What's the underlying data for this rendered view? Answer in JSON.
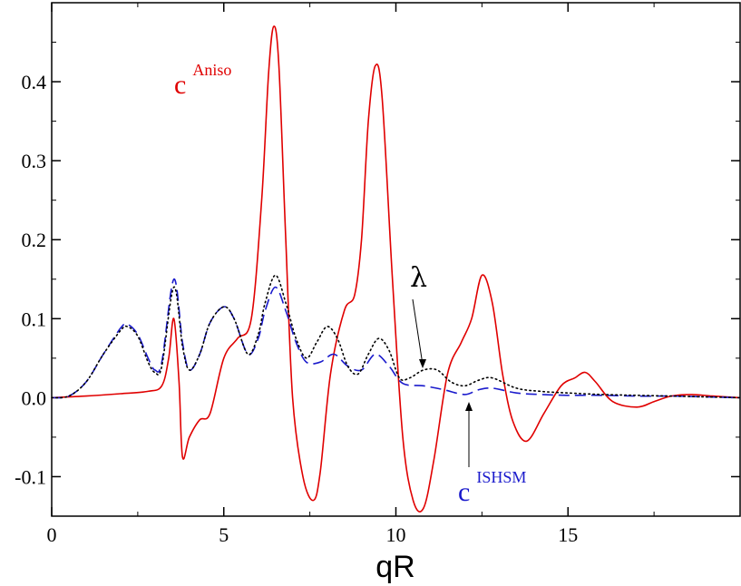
{
  "chart_data": {
    "type": "line",
    "xlabel": "qR",
    "ylabel": "",
    "xlim": [
      0,
      20
    ],
    "ylim": [
      -0.15,
      0.5
    ],
    "xticks": [
      0,
      5,
      10,
      15
    ],
    "xtick_labels": [
      "0",
      "5",
      "10",
      "15"
    ],
    "yticks": [
      -0.1,
      0.0,
      0.1,
      0.2,
      0.3,
      0.4
    ],
    "ytick_labels": [
      "-0.1",
      "0.0",
      "0.1",
      "0.2",
      "0.3",
      "0.4"
    ],
    "grid": false,
    "annotations": {
      "aniso_base": "c",
      "aniso_sup": "Aniso",
      "lambda": "λ",
      "ishsm_base": "c",
      "ishsm_sup": "ISHSM"
    },
    "series": [
      {
        "style": "solid",
        "color": "#e00000",
        "x": [
          0,
          1,
          2,
          2.8,
          3.2,
          3.4,
          3.55,
          3.7,
          3.8,
          4.0,
          4.3,
          4.6,
          5.0,
          5.4,
          5.8,
          6.1,
          6.3,
          6.45,
          6.6,
          6.8,
          7.0,
          7.3,
          7.6,
          7.8,
          8.1,
          8.5,
          8.8,
          9.0,
          9.2,
          9.4,
          9.6,
          9.9,
          10.2,
          10.5,
          10.8,
          11.1,
          11.5,
          11.9,
          12.2,
          12.5,
          12.8,
          13.1,
          13.4,
          13.8,
          14.3,
          14.8,
          15.2,
          15.5,
          15.8,
          16.3,
          17.0,
          17.5,
          18.0,
          18.6,
          19.2,
          20
        ],
        "y": [
          0.0,
          0.002,
          0.005,
          0.008,
          0.015,
          0.05,
          0.1,
          0.02,
          -0.075,
          -0.05,
          -0.028,
          -0.02,
          0.05,
          0.075,
          0.1,
          0.25,
          0.41,
          0.47,
          0.42,
          0.2,
          0.0,
          -0.1,
          -0.13,
          -0.095,
          0.03,
          0.11,
          0.13,
          0.2,
          0.35,
          0.42,
          0.38,
          0.15,
          -0.05,
          -0.13,
          -0.14,
          -0.08,
          0.03,
          0.07,
          0.1,
          0.155,
          0.12,
          0.03,
          -0.03,
          -0.055,
          -0.02,
          0.015,
          0.025,
          0.032,
          0.02,
          -0.005,
          -0.012,
          -0.005,
          0.002,
          0.004,
          0.002,
          0.0
        ]
      },
      {
        "style": "dashed",
        "color": "#1a1acc",
        "x": [
          0,
          0.5,
          1,
          1.5,
          2.0,
          2.2,
          2.5,
          2.8,
          3.0,
          3.2,
          3.55,
          3.8,
          4.0,
          4.3,
          4.6,
          5.0,
          5.3,
          5.7,
          6.0,
          6.2,
          6.5,
          6.8,
          7.1,
          7.4,
          7.8,
          8.2,
          8.6,
          9.0,
          9.4,
          9.8,
          10.2,
          10.8,
          11.4,
          12.0,
          12.4,
          12.8,
          13.5,
          14.2,
          15.0,
          16.0,
          17.0,
          18.0,
          19.0,
          20
        ],
        "y": [
          0.0,
          0.002,
          0.02,
          0.055,
          0.088,
          0.093,
          0.08,
          0.05,
          0.035,
          0.045,
          0.15,
          0.07,
          0.035,
          0.055,
          0.095,
          0.115,
          0.1,
          0.055,
          0.075,
          0.11,
          0.14,
          0.11,
          0.07,
          0.045,
          0.045,
          0.055,
          0.04,
          0.035,
          0.055,
          0.04,
          0.018,
          0.015,
          0.01,
          0.004,
          0.01,
          0.012,
          0.006,
          0.004,
          0.003,
          0.003,
          0.002,
          0.002,
          0.001,
          0.0
        ]
      },
      {
        "style": "dotted",
        "color": "#000000",
        "x": [
          0,
          0.5,
          1,
          1.5,
          2.0,
          2.2,
          2.5,
          2.8,
          3.0,
          3.2,
          3.55,
          3.8,
          4.0,
          4.3,
          4.6,
          5.0,
          5.3,
          5.7,
          6.0,
          6.2,
          6.5,
          6.8,
          7.1,
          7.4,
          7.7,
          8.0,
          8.3,
          8.6,
          8.9,
          9.2,
          9.5,
          9.8,
          10.1,
          10.4,
          10.8,
          11.2,
          11.6,
          12.0,
          12.4,
          12.8,
          13.5,
          14.2,
          15.0,
          16.0,
          17.0,
          18.0,
          19.0,
          20
        ],
        "y": [
          0.0,
          0.002,
          0.02,
          0.055,
          0.085,
          0.09,
          0.078,
          0.045,
          0.032,
          0.04,
          0.14,
          0.065,
          0.035,
          0.055,
          0.095,
          0.115,
          0.1,
          0.055,
          0.08,
          0.12,
          0.155,
          0.12,
          0.075,
          0.05,
          0.07,
          0.09,
          0.075,
          0.04,
          0.03,
          0.055,
          0.075,
          0.06,
          0.025,
          0.025,
          0.035,
          0.035,
          0.02,
          0.015,
          0.022,
          0.025,
          0.012,
          0.008,
          0.006,
          0.004,
          0.003,
          0.002,
          0.001,
          0.0
        ]
      }
    ]
  }
}
